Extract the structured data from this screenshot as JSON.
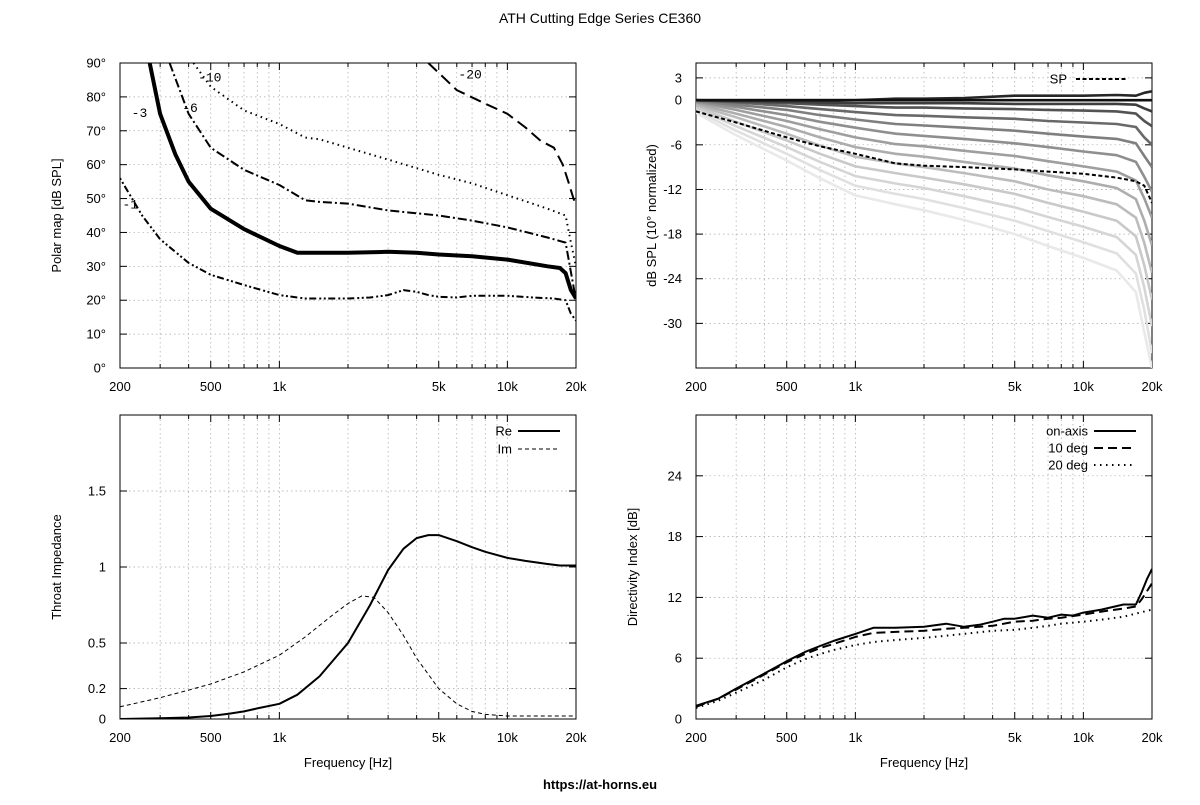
{
  "title": "ATH Cutting Edge Series CE360",
  "footer": "https://at-horns.eu",
  "chart_data": [
    {
      "id": "polar",
      "type": "line",
      "xscale": "log",
      "xlim": [
        200,
        20000
      ],
      "ylim": [
        0,
        90
      ],
      "xticks": [
        200,
        500,
        1000,
        5000,
        10000,
        20000
      ],
      "xticklabels": [
        "200",
        "500",
        "1k",
        "5k",
        "10k",
        "20k"
      ],
      "yticks": [
        0,
        10,
        20,
        30,
        40,
        50,
        60,
        70,
        80,
        90
      ],
      "yticklabels": [
        "0°",
        "10°",
        "20°",
        "30°",
        "40°",
        "50°",
        "60°",
        "70°",
        "80°",
        "90°"
      ],
      "xlabel": "",
      "ylabel": "Polar map [dB SPL]",
      "grid": true,
      "series": [
        {
          "name": "-1",
          "label_at": [
            205,
            47
          ],
          "x": [
            200,
            250,
            300,
            400,
            500,
            700,
            1000,
            1300,
            2000,
            2500,
            3000,
            3500,
            4000,
            4500,
            5000,
            6000,
            7000,
            10000,
            13000,
            16000,
            18000,
            19000,
            20000
          ],
          "values": [
            56,
            45,
            38,
            31,
            27.5,
            24.5,
            21.5,
            20.5,
            20.5,
            20.8,
            21.5,
            23,
            22.5,
            21.5,
            21,
            20.8,
            21.3,
            21.3,
            20.8,
            20.5,
            20,
            16,
            14
          ]
        },
        {
          "name": "-3",
          "label_at": [
            225,
            74
          ],
          "x": [
            270,
            300,
            350,
            400,
            500,
            700,
            1000,
            1200,
            1500,
            2000,
            3000,
            4000,
            5000,
            7000,
            10000,
            15000,
            17000,
            18000,
            19000,
            20000
          ],
          "values": [
            90,
            75,
            63,
            55,
            47,
            41,
            36,
            34,
            34,
            34,
            34.3,
            34,
            33.5,
            33,
            32,
            30,
            29.5,
            28,
            23,
            20.5
          ]
        },
        {
          "name": "-6",
          "label_at": [
            375,
            75.5
          ],
          "x": [
            330,
            400,
            500,
            700,
            1000,
            1300,
            1500,
            2000,
            3000,
            5000,
            7000,
            10000,
            15000,
            18000,
            20000
          ],
          "values": [
            90,
            75,
            65,
            58.5,
            54,
            49.5,
            49,
            48.5,
            46.5,
            45,
            43.5,
            41.5,
            38.5,
            37,
            20
          ]
        },
        {
          "name": "-10",
          "label_at": [
            440,
            84.5
          ],
          "x": [
            420,
            500,
            700,
            1000,
            1300,
            1500,
            2000,
            3000,
            5000,
            7000,
            10000,
            15000,
            18000,
            19000,
            20000
          ],
          "values": [
            90,
            83,
            76,
            72,
            68,
            67.5,
            65,
            61.5,
            57,
            54.5,
            51,
            47,
            45,
            37,
            30
          ]
        },
        {
          "name": "-20",
          "label_at": [
            6100,
            85.5
          ],
          "x": [
            4500,
            6000,
            8000,
            10000,
            12000,
            14000,
            16000,
            17500,
            18500,
            19500,
            20000
          ],
          "values": [
            90,
            82,
            78,
            75,
            71,
            67,
            65,
            60,
            55,
            50,
            48
          ]
        }
      ]
    },
    {
      "id": "spl",
      "type": "line",
      "xscale": "log",
      "xlim": [
        200,
        20000
      ],
      "ylim": [
        -36,
        5
      ],
      "xticks": [
        200,
        500,
        1000,
        5000,
        10000,
        20000
      ],
      "xticklabels": [
        "200",
        "500",
        "1k",
        "5k",
        "10k",
        "20k"
      ],
      "yticks": [
        3,
        0,
        -6,
        -12,
        -18,
        -24,
        -30
      ],
      "yticklabels": [
        "3",
        "0",
        "-6",
        "-12",
        "-18",
        "-24",
        "-30"
      ],
      "xlabel": "",
      "ylabel": "dB SPL (10° normalized)",
      "grid": true,
      "legend": {
        "position": "top-right",
        "entries": [
          "SP"
        ]
      },
      "x": [
        200,
        300,
        500,
        700,
        1000,
        1500,
        2000,
        3000,
        5000,
        7000,
        10000,
        14000,
        17000,
        18500,
        20000
      ],
      "family_values": [
        [
          0,
          0,
          0,
          0,
          0,
          0,
          0,
          0,
          0,
          0,
          0,
          0,
          0,
          0,
          0
        ],
        [
          0,
          0,
          0,
          0,
          0,
          0.2,
          0.2,
          0.3,
          0.6,
          0.6,
          0.6,
          0.7,
          0.6,
          1.0,
          1.2
        ],
        [
          0,
          -0.1,
          -0.2,
          -0.3,
          -0.4,
          -0.4,
          -0.4,
          -0.4,
          -0.5,
          -0.5,
          -0.5,
          -0.5,
          -0.6,
          -1.1,
          -1.5
        ],
        [
          0,
          -0.2,
          -0.4,
          -0.6,
          -0.8,
          -1.0,
          -1.0,
          -1.1,
          -1.2,
          -1.3,
          -1.4,
          -1.5,
          -1.8,
          -2.8,
          -3.5
        ],
        [
          0,
          -0.3,
          -0.8,
          -1.2,
          -1.6,
          -2.0,
          -2.1,
          -2.3,
          -2.5,
          -2.8,
          -3.0,
          -3.2,
          -3.6,
          -5.0,
          -6.0
        ],
        [
          -0.1,
          -0.6,
          -1.3,
          -2.0,
          -2.6,
          -3.2,
          -3.4,
          -3.7,
          -4.1,
          -4.5,
          -4.9,
          -5.2,
          -5.8,
          -7.5,
          -9.0
        ],
        [
          -0.2,
          -0.9,
          -2.0,
          -2.9,
          -3.7,
          -4.5,
          -4.8,
          -5.2,
          -5.8,
          -6.3,
          -6.9,
          -7.4,
          -8.3,
          -10.3,
          -12.3
        ],
        [
          -0.3,
          -1.3,
          -2.8,
          -3.9,
          -5.0,
          -5.9,
          -6.2,
          -6.8,
          -7.5,
          -8.2,
          -8.9,
          -9.6,
          -10.8,
          -13.2,
          -15.8
        ],
        [
          -0.5,
          -1.8,
          -3.6,
          -5.0,
          -6.3,
          -7.2,
          -7.6,
          -8.3,
          -9.2,
          -10.1,
          -10.9,
          -11.8,
          -13.3,
          -16.2,
          -19.5
        ],
        [
          -0.7,
          -2.3,
          -4.5,
          -6.1,
          -7.6,
          -8.5,
          -9.0,
          -9.8,
          -10.9,
          -12.0,
          -12.9,
          -14.0,
          -15.8,
          -19.2,
          -23.2
        ],
        [
          -0.9,
          -2.9,
          -5.4,
          -7.2,
          -8.9,
          -9.8,
          -10.4,
          -11.3,
          -12.6,
          -13.8,
          -15.0,
          -16.2,
          -18.3,
          -22.2,
          -26.8
        ],
        [
          -1.1,
          -3.5,
          -6.3,
          -8.3,
          -10.2,
          -11.2,
          -11.8,
          -12.9,
          -14.4,
          -15.7,
          -17.0,
          -18.4,
          -20.8,
          -25.2,
          -30.4
        ],
        [
          -1.4,
          -4.1,
          -7.2,
          -9.4,
          -11.5,
          -12.6,
          -13.3,
          -14.5,
          -16.2,
          -17.6,
          -19.1,
          -20.6,
          -23.3,
          -28.2,
          -34.0
        ],
        [
          -1.7,
          -4.7,
          -8.1,
          -10.5,
          -12.8,
          -14.0,
          -14.8,
          -16.1,
          -18.0,
          -19.6,
          -21.2,
          -22.9,
          -25.8,
          -31.2,
          -36.0
        ]
      ],
      "family_colors": [
        "#101010",
        "#262626",
        "#3d3d3d",
        "#535353",
        "#696969",
        "#7f7f7f",
        "#8f8f8f",
        "#9e9e9e",
        "#adadad",
        "#bcbcbc",
        "#c9c9c9",
        "#d5d5d5",
        "#e0e0e0",
        "#e9e9e9"
      ],
      "sp_values": [
        -1.5,
        -3.0,
        -5.0,
        -6.2,
        -7.2,
        -8.5,
        -8.8,
        -9.0,
        -9.3,
        -9.6,
        -9.9,
        -10.4,
        -10.9,
        -11.5,
        -13.8
      ]
    },
    {
      "id": "impedance",
      "type": "line",
      "xscale": "log",
      "xlim": [
        200,
        20000
      ],
      "ylim": [
        0,
        2
      ],
      "xticks": [
        200,
        500,
        1000,
        5000,
        10000,
        20000
      ],
      "xticklabels": [
        "200",
        "500",
        "1k",
        "5k",
        "10k",
        "20k"
      ],
      "yticks": [
        0,
        0.2,
        0.5,
        1,
        1.5
      ],
      "yticklabels": [
        "0",
        "0.2",
        "0.5",
        "1",
        "1.5"
      ],
      "xlabel": "Frequency [Hz]",
      "ylabel": "Throat Impedance",
      "grid": true,
      "legend": {
        "position": "top-right",
        "entries": [
          "Re",
          "Im"
        ]
      },
      "series": [
        {
          "name": "Re",
          "x": [
            200,
            300,
            400,
            500,
            600,
            700,
            800,
            1000,
            1200,
            1500,
            2000,
            2500,
            3000,
            3500,
            4000,
            4500,
            5000,
            6000,
            7000,
            8000,
            10000,
            12000,
            15000,
            17000,
            20000
          ],
          "values": [
            0,
            0.005,
            0.01,
            0.02,
            0.035,
            0.05,
            0.07,
            0.1,
            0.16,
            0.28,
            0.5,
            0.75,
            0.98,
            1.12,
            1.19,
            1.21,
            1.21,
            1.17,
            1.13,
            1.1,
            1.06,
            1.04,
            1.02,
            1.01,
            1.01
          ]
        },
        {
          "name": "Im",
          "x": [
            200,
            300,
            400,
            500,
            700,
            1000,
            1300,
            1700,
            2000,
            2300,
            2600,
            3000,
            3500,
            4000,
            5000,
            6000,
            7000,
            8000,
            10000,
            12000,
            15000,
            20000
          ],
          "values": [
            0.08,
            0.14,
            0.19,
            0.23,
            0.31,
            0.42,
            0.54,
            0.68,
            0.76,
            0.81,
            0.8,
            0.7,
            0.55,
            0.4,
            0.2,
            0.1,
            0.05,
            0.03,
            0.02,
            0.02,
            0.02,
            0.02
          ]
        }
      ]
    },
    {
      "id": "di",
      "type": "line",
      "xscale": "log",
      "xlim": [
        200,
        20000
      ],
      "ylim": [
        0,
        30
      ],
      "xticks": [
        200,
        500,
        1000,
        5000,
        10000,
        20000
      ],
      "xticklabels": [
        "200",
        "500",
        "1k",
        "5k",
        "10k",
        "20k"
      ],
      "yticks": [
        0,
        6,
        12,
        18,
        24
      ],
      "yticklabels": [
        "0",
        "6",
        "12",
        "18",
        "24"
      ],
      "xlabel": "Frequency [Hz]",
      "ylabel": "Directivity Index [dB]",
      "grid": true,
      "legend": {
        "position": "top-right",
        "entries": [
          "on-axis",
          "10 deg",
          "20 deg"
        ]
      },
      "series": [
        {
          "name": "on-axis",
          "x": [
            200,
            250,
            300,
            400,
            500,
            600,
            700,
            800,
            1000,
            1200,
            1500,
            2000,
            2500,
            3000,
            3500,
            4000,
            4500,
            5000,
            6000,
            7000,
            8000,
            9000,
            10000,
            12000,
            15000,
            17000,
            18000,
            19000,
            20000
          ],
          "values": [
            1.3,
            2,
            3,
            4.5,
            5.7,
            6.6,
            7.2,
            7.7,
            8.4,
            9.0,
            9.0,
            9.1,
            9.4,
            9.1,
            9.3,
            9.6,
            9.9,
            9.9,
            10.2,
            10.0,
            10.3,
            10.2,
            10.5,
            10.8,
            11.3,
            11.3,
            12.5,
            13.8,
            14.8
          ]
        },
        {
          "name": "10 deg",
          "x": [
            200,
            250,
            300,
            400,
            500,
            600,
            700,
            800,
            1000,
            1200,
            1500,
            2000,
            2500,
            3000,
            3500,
            4000,
            5000,
            6000,
            7000,
            8000,
            10000,
            12000,
            15000,
            17000,
            18000,
            19000,
            20000
          ],
          "values": [
            1.2,
            2,
            2.9,
            4.4,
            5.6,
            6.4,
            7.0,
            7.4,
            8.1,
            8.5,
            8.6,
            8.7,
            8.9,
            9.0,
            9.1,
            9.2,
            9.6,
            9.7,
            9.9,
            10.0,
            10.3,
            10.6,
            10.9,
            11.1,
            11.8,
            12.6,
            13.4
          ]
        },
        {
          "name": "20 deg",
          "x": [
            200,
            250,
            300,
            400,
            500,
            600,
            700,
            800,
            1000,
            1200,
            1500,
            2000,
            3000,
            4000,
            5000,
            6000,
            7000,
            8000,
            10000,
            12000,
            15000,
            17000,
            20000
          ],
          "values": [
            1.1,
            1.8,
            2.6,
            3.9,
            5.1,
            5.9,
            6.4,
            6.8,
            7.3,
            7.6,
            7.8,
            8.0,
            8.4,
            8.7,
            8.8,
            9.0,
            9.2,
            9.4,
            9.6,
            9.8,
            10.1,
            10.4,
            10.8
          ]
        }
      ]
    }
  ]
}
